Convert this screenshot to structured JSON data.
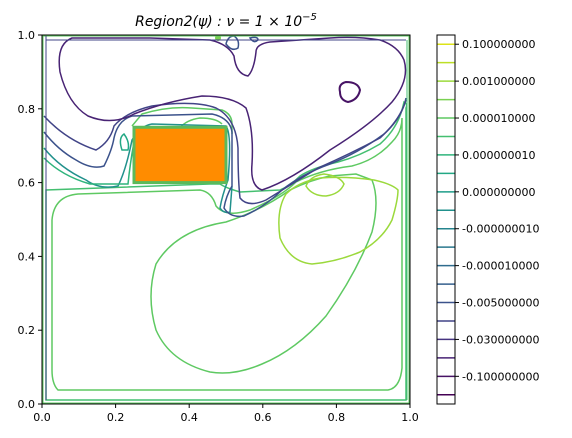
{
  "chart_data": {
    "type": "contour",
    "title": "Region2(ψ) : ν = 1 × 10⁻⁵",
    "title_parts": {
      "main": "Region2(ψ) : ν = 1 × 10",
      "exp": "−5"
    },
    "xlim": [
      0,
      1
    ],
    "ylim": [
      0,
      1
    ],
    "xticks": [
      "0.0",
      "0.2",
      "0.4",
      "0.6",
      "0.8",
      "1.0"
    ],
    "yticks": [
      "0.0",
      "0.2",
      "0.4",
      "0.6",
      "0.8",
      "1.0"
    ],
    "obstacle": {
      "x": [
        0.25,
        0.5
      ],
      "y": [
        0.6,
        0.75
      ],
      "color": "#ff8c00",
      "edge_color": "#5cba5a"
    },
    "colorbar": {
      "tick_labels": [
        "0.100000000",
        "0.001000000",
        "0.000010000",
        "0.000000010",
        "0.000000000",
        "-0.000000010",
        "-0.000010000",
        "-0.005000000",
        "-0.030000000",
        "-0.100000000"
      ],
      "levels": 20,
      "colors": [
        "#440154",
        "#471365",
        "#482374",
        "#463480",
        "#414487",
        "#3b528b",
        "#355f8d",
        "#2f6c8e",
        "#2a788e",
        "#25848e",
        "#21918c",
        "#1e9d89",
        "#22a884",
        "#2fb47c",
        "#44bf70",
        "#5ec962",
        "#7ad151",
        "#9bd93c",
        "#bddf26",
        "#dde318"
      ]
    },
    "grid": false
  }
}
